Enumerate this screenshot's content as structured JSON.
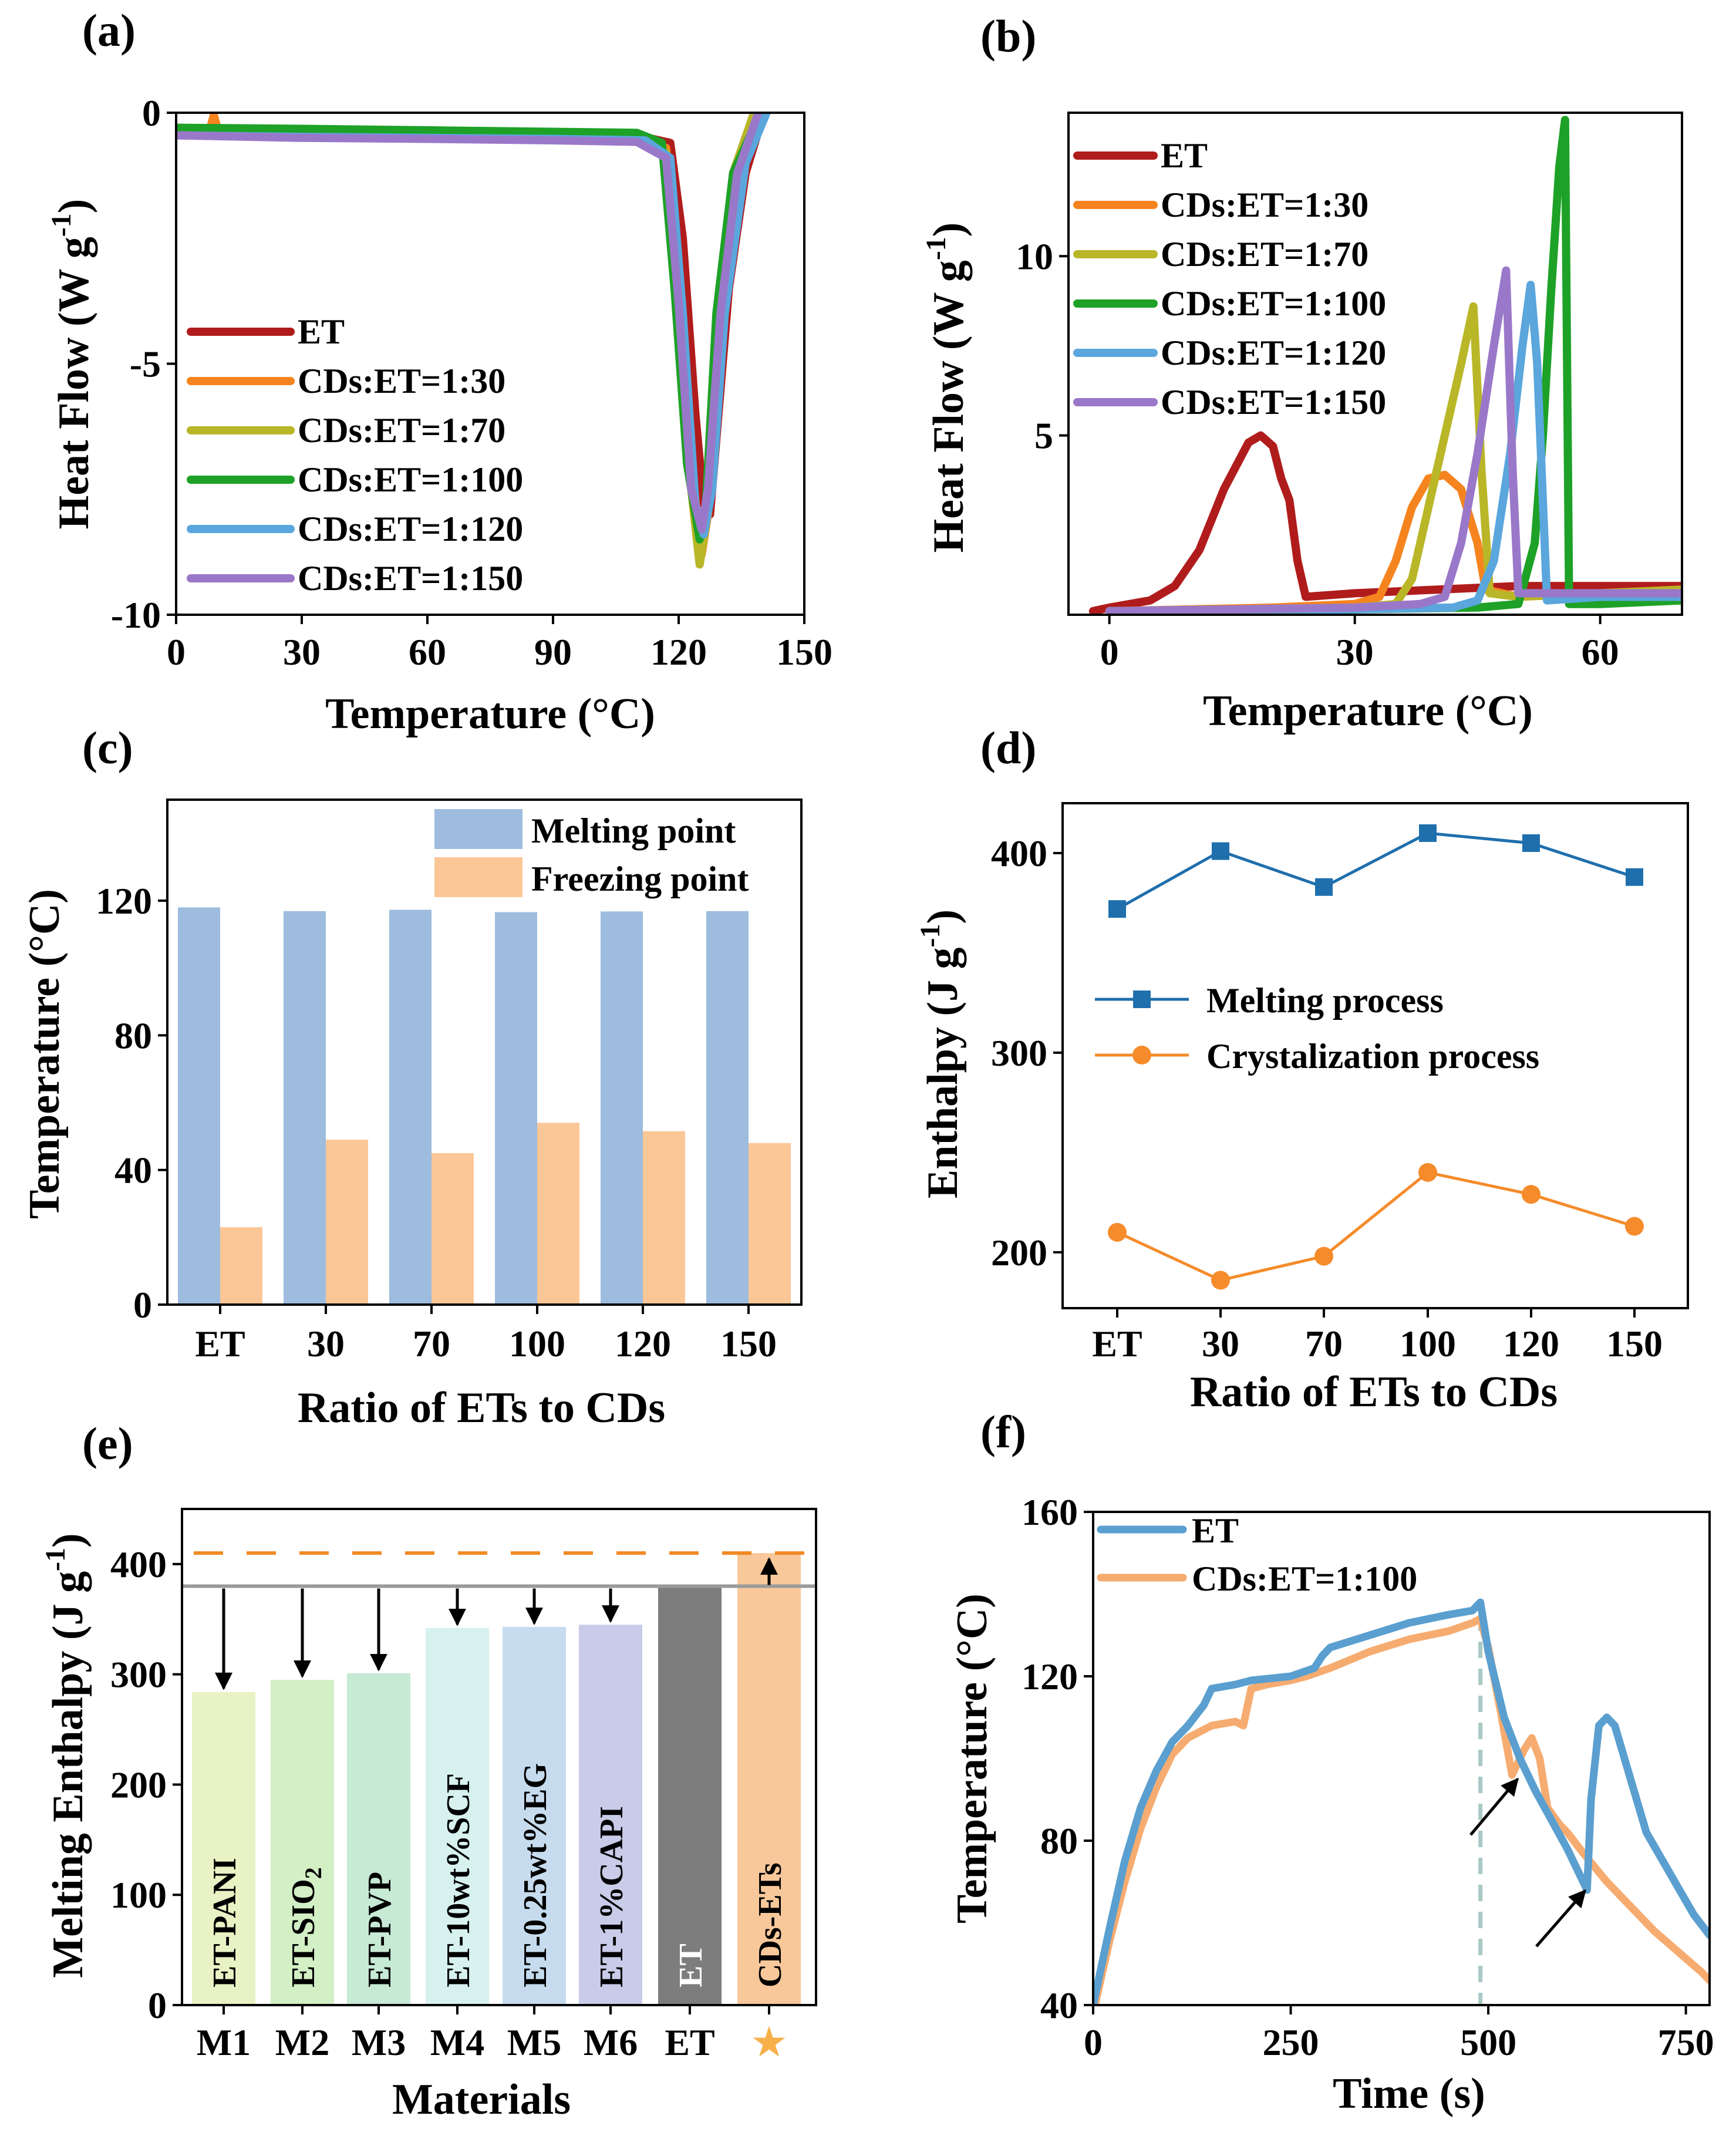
{
  "colors": {
    "ET": "#b01c1c",
    "CDs:ET=1:30": "#f5841f",
    "CDs:ET=1:70": "#b9b628",
    "CDs:ET=1:100": "#1ea127",
    "CDs:ET=1:120": "#5aa6dd",
    "CDs:ET=1:150": "#9a78c9",
    "melting": "#9dbcde",
    "freezing": "#fbc796",
    "meltLine": "#1f6fad",
    "crystLine": "#f58b2a",
    "fET": "#5a9fcf",
    "fCD": "#f6ac70"
  },
  "chart_data": [
    {
      "panel": "(a)",
      "type": "line",
      "xlabel": "Temperature (°C)",
      "ylabel_main": "Heat Flow (W g",
      "ylabel_sup": "-1",
      "ylabel_close": ")",
      "xlim": [
        0,
        150
      ],
      "ylim": [
        -10,
        0
      ],
      "xticks": [
        "0",
        "30",
        "60",
        "90",
        "120",
        "150"
      ],
      "yticks": [
        "0",
        "-5",
        "-10"
      ],
      "legend": [
        "ET",
        "CDs:ET=1:30",
        "CDs:ET=1:70",
        "CDs:ET=1:100",
        "CDs:ET=1:120",
        "CDs:ET=1:150"
      ],
      "series": [
        {
          "name": "ET",
          "x": [
            0,
            30,
            60,
            90,
            110,
            118,
            121,
            124,
            126,
            127.5,
            129,
            132,
            136,
            140
          ],
          "y": [
            -0.3,
            -0.35,
            -0.38,
            -0.42,
            -0.45,
            -0.6,
            -2.5,
            -6,
            -7.8,
            -8.0,
            -6.5,
            -3.5,
            -1.2,
            -0.1
          ]
        },
        {
          "name": "CDs:ET=1:30",
          "x": [
            0,
            8,
            9,
            10,
            30,
            60,
            90,
            110,
            117,
            120,
            123,
            125.5,
            127,
            130,
            134,
            138
          ],
          "y": [
            -0.35,
            -0.35,
            -0.05,
            -0.35,
            -0.4,
            -0.42,
            -0.45,
            -0.48,
            -0.7,
            -3.5,
            -7,
            -8.8,
            -8,
            -4,
            -1,
            0
          ]
        },
        {
          "name": "CDs:ET=1:70",
          "x": [
            0,
            30,
            60,
            90,
            110,
            117,
            120,
            123,
            125,
            126.5,
            129,
            133,
            138
          ],
          "y": [
            -0.4,
            -0.45,
            -0.48,
            -0.5,
            -0.52,
            -0.8,
            -3.8,
            -7.5,
            -9.0,
            -8.2,
            -4.2,
            -1.2,
            0
          ]
        },
        {
          "name": "CDs:ET=1:100",
          "x": [
            0,
            30,
            60,
            90,
            110,
            116,
            119,
            122,
            125,
            126.5,
            129,
            133,
            139
          ],
          "y": [
            -0.3,
            -0.32,
            -0.35,
            -0.38,
            -0.4,
            -0.6,
            -3.5,
            -7.0,
            -8.5,
            -7.8,
            -4.0,
            -1.2,
            -0.1
          ]
        },
        {
          "name": "CDs:ET=1:120",
          "x": [
            0,
            30,
            60,
            90,
            112,
            118,
            121,
            124,
            126,
            128,
            131,
            136,
            141
          ],
          "y": [
            -0.45,
            -0.48,
            -0.5,
            -0.52,
            -0.55,
            -0.9,
            -4.0,
            -7.8,
            -8.4,
            -7.5,
            -4.0,
            -1.0,
            0
          ]
        },
        {
          "name": "CDs:ET=1:150",
          "x": [
            0,
            30,
            60,
            90,
            110,
            117,
            120,
            123,
            125.5,
            127,
            130,
            134,
            139
          ],
          "y": [
            -0.45,
            -0.5,
            -0.52,
            -0.55,
            -0.58,
            -0.9,
            -3.8,
            -7.5,
            -8.3,
            -7.5,
            -4.0,
            -1.2,
            0
          ]
        }
      ]
    },
    {
      "panel": "(b)",
      "type": "line",
      "xlabel": "Temperature (°C)",
      "ylabel_main": "Heat Flow (W g",
      "ylabel_sup": "-1",
      "ylabel_close": ")",
      "xlim": [
        -5,
        70
      ],
      "ylim": [
        0,
        14
      ],
      "xticks": [
        "0",
        "30",
        "60"
      ],
      "yticks": [
        "5",
        "10"
      ],
      "legend": [
        "ET",
        "CDs:ET=1:30",
        "CDs:ET=1:70",
        "CDs:ET=1:100",
        "CDs:ET=1:120",
        "CDs:ET=1:150"
      ],
      "series": [
        {
          "name": "ET",
          "x": [
            -2,
            0,
            5,
            8,
            11,
            14,
            17,
            18.5,
            20,
            21,
            22,
            23,
            24,
            30,
            40,
            50,
            60,
            70
          ],
          "y": [
            0.1,
            0.2,
            0.4,
            0.8,
            1.8,
            3.5,
            4.8,
            5.0,
            4.7,
            3.8,
            3.2,
            1.5,
            0.5,
            0.6,
            0.7,
            0.8,
            0.8,
            0.8
          ]
        },
        {
          "name": "CDs:ET=1:30",
          "x": [
            0,
            20,
            30,
            33,
            35,
            37,
            39,
            41,
            43,
            45,
            46,
            50,
            60,
            70
          ],
          "y": [
            0.1,
            0.2,
            0.3,
            0.5,
            1.5,
            3.0,
            3.8,
            3.9,
            3.5,
            2.0,
            0.7,
            0.5,
            0.6,
            0.7
          ]
        },
        {
          "name": "CDs:ET=1:70",
          "x": [
            0,
            30,
            35,
            37,
            39,
            41,
            43,
            44.5,
            45.5,
            46.5,
            50,
            60,
            70
          ],
          "y": [
            0.1,
            0.2,
            0.3,
            1.0,
            3.0,
            5.0,
            7.0,
            8.6,
            4.0,
            0.6,
            0.5,
            0.6,
            0.7
          ]
        },
        {
          "name": "CDs:ET=1:100",
          "x": [
            0,
            30,
            45,
            50,
            52,
            53,
            54,
            55,
            55.7,
            56.2,
            60,
            70
          ],
          "y": [
            0.1,
            0.15,
            0.2,
            0.3,
            2.0,
            5.0,
            9.0,
            12.5,
            13.8,
            0.3,
            0.3,
            0.4
          ]
        },
        {
          "name": "CDs:ET=1:120",
          "x": [
            0,
            30,
            42,
            45,
            47,
            49,
            50.5,
            51.5,
            52.3,
            53.5,
            60,
            70
          ],
          "y": [
            0.1,
            0.15,
            0.2,
            0.4,
            1.5,
            4.5,
            7.5,
            9.2,
            7.0,
            0.4,
            0.5,
            0.5
          ]
        },
        {
          "name": "CDs:ET=1:150",
          "x": [
            0,
            30,
            38,
            41,
            43,
            45,
            47,
            48.5,
            49.3,
            50,
            55,
            60,
            70
          ],
          "y": [
            0.1,
            0.2,
            0.3,
            0.5,
            2.0,
            4.5,
            7.5,
            9.6,
            4.0,
            0.6,
            0.6,
            0.6,
            0.6
          ]
        }
      ]
    },
    {
      "panel": "(c)",
      "type": "bar",
      "xlabel": "Ratio of ETs to CDs",
      "ylabel": "Temperature (°C)",
      "ylim": [
        0,
        150
      ],
      "yticks": [
        "0",
        "40",
        "80",
        "120"
      ],
      "categories": [
        "ET",
        "30",
        "70",
        "100",
        "120",
        "150"
      ],
      "series": [
        {
          "name": "Melting point",
          "values": [
            118.0,
            116.9,
            117.3,
            116.6,
            116.8,
            116.9
          ]
        },
        {
          "name": "Freezing point",
          "values": [
            23.0,
            49.0,
            45.0,
            54.0,
            51.5,
            48.0
          ]
        }
      ]
    },
    {
      "panel": "(d)",
      "type": "line",
      "xlabel": "Ratio of ETs to CDs",
      "ylabel_main": "Enthalpy (J g",
      "ylabel_sup": "-1",
      "ylabel_close": ")",
      "ylim": [
        172,
        425
      ],
      "yticks": [
        "200",
        "300",
        "400"
      ],
      "categories": [
        "ET",
        "30",
        "70",
        "100",
        "120",
        "150"
      ],
      "series": [
        {
          "name": "Melting process",
          "values": [
            372,
            401,
            383,
            410,
            405,
            388
          ]
        },
        {
          "name": "Crystalization process",
          "values": [
            210,
            186,
            198,
            240,
            229,
            213
          ]
        }
      ]
    },
    {
      "panel": "(e)",
      "type": "bar",
      "xlabel": "Materials",
      "ylabel_main": "Melting Enthalpy (J g",
      "ylabel_sup": "-1",
      "ylabel_close": ")",
      "ylim": [
        0,
        450
      ],
      "yticks": [
        "0",
        "100",
        "200",
        "300",
        "400"
      ],
      "categories": [
        "M1",
        "M2",
        "M3",
        "M4",
        "M5",
        "M6",
        "ET",
        "★"
      ],
      "bar_labels": [
        "ET-PANI",
        "ET-SIO",
        "ET-PVP",
        "ET-10wt%SCF",
        "ET-0.25wt%EG",
        "ET-1%CAPI",
        "ET",
        "CDs-ETs"
      ],
      "bar_label_sub": "2",
      "values": [
        284,
        295,
        301,
        342,
        343,
        345,
        380,
        410
      ],
      "bar_colors": [
        "#e9f2c4",
        "#d3efc5",
        "#c6ead4",
        "#d7f2ee",
        "#c6dcee",
        "#c9cce8",
        "#7d7d7d",
        "#f8c89b"
      ],
      "reference_lines": {
        "ET": 380,
        "CDs-ETs": 410
      }
    },
    {
      "panel": "(f)",
      "type": "line",
      "xlabel": "Time (s)",
      "ylabel": "Temperature (°C)",
      "xlim": [
        0,
        780
      ],
      "ylim": [
        40,
        160
      ],
      "xticks": [
        "0",
        "250",
        "500",
        "750"
      ],
      "yticks": [
        "40",
        "80",
        "120",
        "160"
      ],
      "legend": [
        "ET",
        "CDs:ET=1:100"
      ],
      "vline_x": 490,
      "series": [
        {
          "name": "ET",
          "x": [
            0,
            20,
            40,
            60,
            80,
            100,
            120,
            140,
            150,
            180,
            200,
            250,
            280,
            290,
            300,
            350,
            400,
            450,
            480,
            490,
            500,
            520,
            540,
            560,
            580,
            600,
            615,
            625,
            630,
            640,
            650,
            660,
            680,
            700,
            730,
            760,
            780
          ],
          "y": [
            40,
            58,
            75,
            88,
            97,
            104,
            108,
            113,
            117,
            118,
            119,
            120,
            122,
            125,
            127,
            130,
            133,
            135,
            136,
            138,
            126,
            110,
            100,
            92,
            85,
            78,
            72,
            68,
            90,
            108,
            110,
            108,
            95,
            82,
            72,
            62,
            57
          ]
        },
        {
          "name": "CDs:ET=1:100",
          "x": [
            0,
            20,
            40,
            60,
            80,
            100,
            120,
            150,
            180,
            190,
            200,
            220,
            250,
            270,
            300,
            350,
            400,
            450,
            480,
            490,
            500,
            515,
            530,
            545,
            555,
            565,
            575,
            590,
            600,
            620,
            650,
            680,
            710,
            740,
            770,
            780
          ],
          "y": [
            38,
            55,
            70,
            83,
            93,
            101,
            105,
            108,
            109,
            108,
            117,
            118,
            119,
            120,
            122,
            126,
            129,
            131,
            133,
            134,
            127,
            112,
            96,
            102,
            105,
            100,
            88,
            84,
            82,
            77,
            70,
            64,
            58,
            53,
            48,
            46
          ]
        }
      ]
    }
  ]
}
